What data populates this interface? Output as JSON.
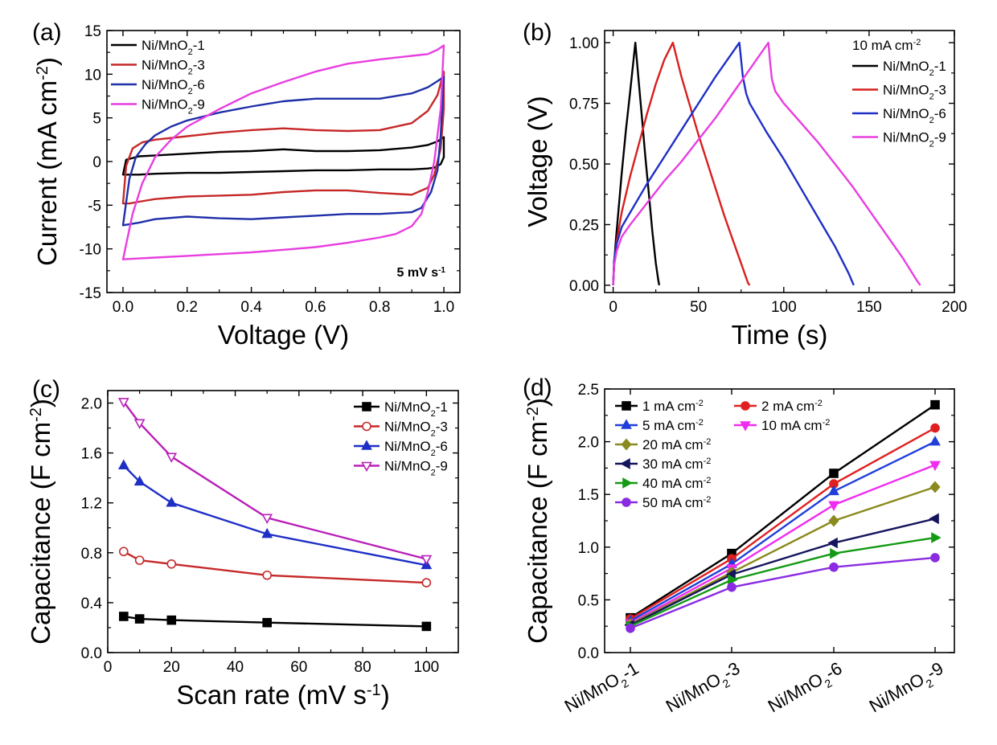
{
  "chart_data": [
    {
      "panel": "(a)",
      "type": "line",
      "xlabel": "Voltage (V)",
      "ylabel": "Current (mA cm⁻²)",
      "xlim": [
        -0.05,
        1.05
      ],
      "ylim": [
        -15,
        15
      ],
      "xticks": [
        0.0,
        0.2,
        0.4,
        0.6,
        0.8,
        1.0
      ],
      "xticklabels": [
        "0.0",
        "0.2",
        "0.4",
        "0.6",
        "0.8",
        "1.0"
      ],
      "yticks": [
        -15,
        -10,
        -5,
        0,
        5,
        10,
        15
      ],
      "yticklabels": [
        "-15",
        "-10",
        "-5",
        "0",
        "5",
        "10",
        "15"
      ],
      "annotation": "5 mV s⁻¹",
      "legend_position": "top-left",
      "series": [
        {
          "name": "Ni/MnO₂-1",
          "color": "#000000",
          "x": [
            0,
            0.01,
            0.05,
            0.1,
            0.2,
            0.3,
            0.4,
            0.5,
            0.6,
            0.7,
            0.8,
            0.9,
            0.95,
            0.98,
            1.0,
            1.0,
            0.99,
            0.97,
            0.95,
            0.9,
            0.8,
            0.7,
            0.6,
            0.5,
            0.4,
            0.3,
            0.2,
            0.1,
            0.05,
            0.02,
            0.0,
            0.0
          ],
          "y": [
            -1.5,
            0.2,
            0.6,
            0.7,
            0.9,
            1.1,
            1.2,
            1.4,
            1.2,
            1.2,
            1.3,
            1.6,
            1.9,
            2.3,
            2.8,
            0.5,
            -0.3,
            -0.7,
            -0.8,
            -0.9,
            -0.9,
            -1.0,
            -1.0,
            -1.1,
            -1.2,
            -1.3,
            -1.3,
            -1.4,
            -1.5,
            -1.5,
            -1.5,
            -1.5
          ]
        },
        {
          "name": "Ni/MnO₂-3",
          "color": "#c62828",
          "x": [
            0,
            0.01,
            0.03,
            0.06,
            0.1,
            0.2,
            0.3,
            0.4,
            0.5,
            0.6,
            0.7,
            0.8,
            0.9,
            0.95,
            0.98,
            1.0,
            1.0,
            0.99,
            0.97,
            0.95,
            0.9,
            0.8,
            0.7,
            0.6,
            0.5,
            0.4,
            0.3,
            0.2,
            0.1,
            0.05,
            0.02,
            0.0
          ],
          "y": [
            -4.8,
            -0.5,
            1.5,
            2.2,
            2.5,
            2.9,
            3.3,
            3.6,
            3.8,
            3.6,
            3.5,
            3.6,
            4.4,
            5.8,
            7.6,
            10.3,
            6.0,
            1.5,
            -1.5,
            -3.0,
            -3.8,
            -3.6,
            -3.3,
            -3.3,
            -3.5,
            -3.8,
            -3.9,
            -4.0,
            -4.3,
            -4.6,
            -4.8,
            -4.8
          ]
        },
        {
          "name": "Ni/MnO₂-6",
          "color": "#1f2fa8",
          "x": [
            0,
            0.02,
            0.04,
            0.07,
            0.1,
            0.15,
            0.2,
            0.3,
            0.4,
            0.5,
            0.6,
            0.7,
            0.8,
            0.9,
            0.95,
            0.98,
            1.0,
            0.99,
            0.98,
            0.96,
            0.93,
            0.9,
            0.8,
            0.7,
            0.6,
            0.5,
            0.4,
            0.3,
            0.2,
            0.1,
            0.05,
            0.0
          ],
          "y": [
            -7.3,
            -2.0,
            0.5,
            2.0,
            3.0,
            4.0,
            4.7,
            5.6,
            6.3,
            6.9,
            7.2,
            7.2,
            7.2,
            7.8,
            8.5,
            9.2,
            9.7,
            3.0,
            -1.0,
            -3.5,
            -5.3,
            -5.8,
            -6.0,
            -6.0,
            -6.2,
            -6.4,
            -6.6,
            -6.5,
            -6.3,
            -6.6,
            -7.0,
            -7.3
          ]
        },
        {
          "name": "Ni/MnO₂-9",
          "color": "#e83ee0",
          "x": [
            0,
            0.03,
            0.06,
            0.1,
            0.15,
            0.2,
            0.3,
            0.4,
            0.5,
            0.6,
            0.7,
            0.8,
            0.9,
            0.95,
            0.98,
            1.0,
            0.99,
            0.97,
            0.95,
            0.93,
            0.9,
            0.85,
            0.8,
            0.7,
            0.6,
            0.5,
            0.4,
            0.3,
            0.2,
            0.1,
            0.05,
            0.0
          ],
          "y": [
            -11.2,
            -6.0,
            -2.5,
            0.5,
            2.5,
            4.0,
            6.0,
            7.8,
            9.1,
            10.3,
            11.2,
            11.7,
            12.1,
            12.3,
            12.8,
            13.3,
            6.0,
            0.0,
            -3.5,
            -6.0,
            -7.4,
            -8.3,
            -8.7,
            -9.3,
            -9.8,
            -10.1,
            -10.4,
            -10.6,
            -10.8,
            -11.0,
            -11.1,
            -11.2
          ]
        }
      ]
    },
    {
      "panel": "(b)",
      "type": "line",
      "xlabel": "Time (s)",
      "ylabel": "Voltage (V)",
      "xlim": [
        -5,
        200
      ],
      "ylim": [
        -0.03,
        1.05
      ],
      "xticks": [
        0,
        50,
        100,
        150,
        200
      ],
      "xticklabels": [
        "0",
        "50",
        "100",
        "150",
        "200"
      ],
      "yticks": [
        0,
        0.25,
        0.5,
        0.75,
        1.0
      ],
      "yticklabels": [
        "0.00",
        "0.25",
        "0.50",
        "0.75",
        "1.00"
      ],
      "legend_title": "10 mA cm⁻²",
      "legend_position": "top-right",
      "series": [
        {
          "name": "Ni/MnO₂-1",
          "color": "#000000",
          "x": [
            0,
            0.5,
            1.5,
            3,
            5,
            7.5,
            10,
            13,
            15,
            17,
            19,
            21,
            23,
            25,
            26.5,
            27
          ],
          "y": [
            0,
            0.08,
            0.18,
            0.3,
            0.46,
            0.64,
            0.8,
            1.0,
            0.84,
            0.68,
            0.52,
            0.37,
            0.22,
            0.09,
            0.02,
            0
          ]
        },
        {
          "name": "Ni/MnO₂-3",
          "color": "#d81f1f",
          "x": [
            0,
            0.5,
            2,
            5,
            10,
            15,
            20,
            25,
            30,
            35,
            40,
            45,
            50,
            55,
            60,
            65,
            70,
            75,
            79,
            80
          ],
          "y": [
            0,
            0.08,
            0.18,
            0.3,
            0.45,
            0.58,
            0.71,
            0.83,
            0.93,
            1.0,
            0.86,
            0.74,
            0.62,
            0.51,
            0.4,
            0.29,
            0.19,
            0.09,
            0.01,
            0
          ]
        },
        {
          "name": "Ni/MnO₂-6",
          "color": "#1f2fc6",
          "x": [
            0,
            0.5,
            2,
            5,
            10,
            20,
            30,
            40,
            50,
            60,
            70,
            74,
            76,
            78,
            80,
            85,
            90,
            100,
            110,
            120,
            130,
            138,
            141
          ],
          "y": [
            0,
            0.1,
            0.17,
            0.24,
            0.3,
            0.42,
            0.53,
            0.64,
            0.75,
            0.86,
            0.96,
            1.0,
            0.86,
            0.79,
            0.75,
            0.69,
            0.63,
            0.52,
            0.4,
            0.28,
            0.16,
            0.05,
            0
          ]
        },
        {
          "name": "Ni/MnO₂-9",
          "color": "#e83ee0",
          "x": [
            0,
            0.5,
            2,
            5,
            10,
            20,
            30,
            40,
            50,
            60,
            70,
            80,
            91,
            92,
            93,
            95,
            100,
            110,
            120,
            130,
            140,
            150,
            160,
            170,
            178,
            180
          ],
          "y": [
            0,
            0.08,
            0.14,
            0.2,
            0.25,
            0.34,
            0.43,
            0.51,
            0.6,
            0.69,
            0.79,
            0.89,
            1.0,
            0.92,
            0.85,
            0.8,
            0.75,
            0.67,
            0.59,
            0.5,
            0.41,
            0.31,
            0.21,
            0.11,
            0.02,
            0
          ]
        }
      ]
    },
    {
      "panel": "(c)",
      "type": "line",
      "xlabel": "Scan rate (mV s⁻¹)",
      "ylabel": "Capacitance (F cm⁻²)",
      "xlim": [
        0,
        110
      ],
      "ylim": [
        0,
        2.1
      ],
      "xticks": [
        0,
        20,
        40,
        60,
        80,
        100
      ],
      "xticklabels": [
        "0",
        "20",
        "40",
        "60",
        "80",
        "100"
      ],
      "yticks": [
        0,
        0.4,
        0.8,
        1.2,
        1.6,
        2.0
      ],
      "yticklabels": [
        "0.0",
        "0.4",
        "0.8",
        "1.2",
        "1.6",
        "2.0"
      ],
      "legend_position": "top-right",
      "series": [
        {
          "name": "Ni/MnO₂-1",
          "color": "#000000",
          "marker": "square",
          "x": [
            5,
            10,
            20,
            50,
            100
          ],
          "values": [
            0.29,
            0.27,
            0.26,
            0.24,
            0.21
          ]
        },
        {
          "name": "Ni/MnO₂-3",
          "color": "#c62828",
          "marker": "circle-open",
          "x": [
            5,
            10,
            20,
            50,
            100
          ],
          "values": [
            0.81,
            0.74,
            0.71,
            0.62,
            0.56
          ]
        },
        {
          "name": "Ni/MnO₂-6",
          "color": "#1f2fc6",
          "marker": "triangle-up",
          "x": [
            5,
            10,
            20,
            50,
            100
          ],
          "values": [
            1.5,
            1.37,
            1.2,
            0.95,
            0.7
          ]
        },
        {
          "name": "Ni/MnO₂-9",
          "color": "#b81fb8",
          "marker": "triangle-down-open",
          "x": [
            5,
            10,
            20,
            50,
            100
          ],
          "values": [
            2.01,
            1.84,
            1.57,
            1.08,
            0.75
          ]
        }
      ]
    },
    {
      "panel": "(d)",
      "type": "line",
      "xlabel": "",
      "ylabel": "Capacitance (F cm⁻²)",
      "categories": [
        "Ni/MnO₂-1",
        "Ni/MnO₂-3",
        "Ni/MnO₂-6",
        "Ni/MnO₂-9"
      ],
      "ylim": [
        0,
        2.5
      ],
      "yticks": [
        0,
        0.5,
        1.0,
        1.5,
        2.0,
        2.5
      ],
      "yticklabels": [
        "0.0",
        "0.5",
        "1.0",
        "1.5",
        "2.0",
        "2.5"
      ],
      "legend_position": "top-left",
      "series": [
        {
          "name": "1 mA cm⁻²",
          "color": "#000000",
          "marker": "square",
          "values": [
            0.33,
            0.94,
            1.7,
            2.35
          ]
        },
        {
          "name": "2 mA cm⁻²",
          "color": "#e02020",
          "marker": "circle",
          "values": [
            0.32,
            0.89,
            1.6,
            2.13
          ]
        },
        {
          "name": "5 mA cm⁻²",
          "color": "#1f3fd8",
          "marker": "triangle-up",
          "values": [
            0.3,
            0.84,
            1.53,
            2.0
          ]
        },
        {
          "name": "10 mA cm⁻²",
          "color": "#f02cf0",
          "marker": "triangle-down",
          "values": [
            0.28,
            0.8,
            1.4,
            1.78
          ]
        },
        {
          "name": "20 mA cm⁻²",
          "color": "#8a8a1e",
          "marker": "diamond",
          "values": [
            0.27,
            0.76,
            1.25,
            1.57
          ]
        },
        {
          "name": "30 mA cm⁻²",
          "color": "#15155e",
          "marker": "triangle-left",
          "values": [
            0.26,
            0.74,
            1.04,
            1.27
          ]
        },
        {
          "name": "40 mA cm⁻²",
          "color": "#149a14",
          "marker": "triangle-right",
          "values": [
            0.25,
            0.69,
            0.94,
            1.09
          ]
        },
        {
          "name": "50 mA cm⁻²",
          "color": "#8a2be2",
          "marker": "circle",
          "values": [
            0.23,
            0.62,
            0.81,
            0.9
          ]
        }
      ]
    }
  ]
}
